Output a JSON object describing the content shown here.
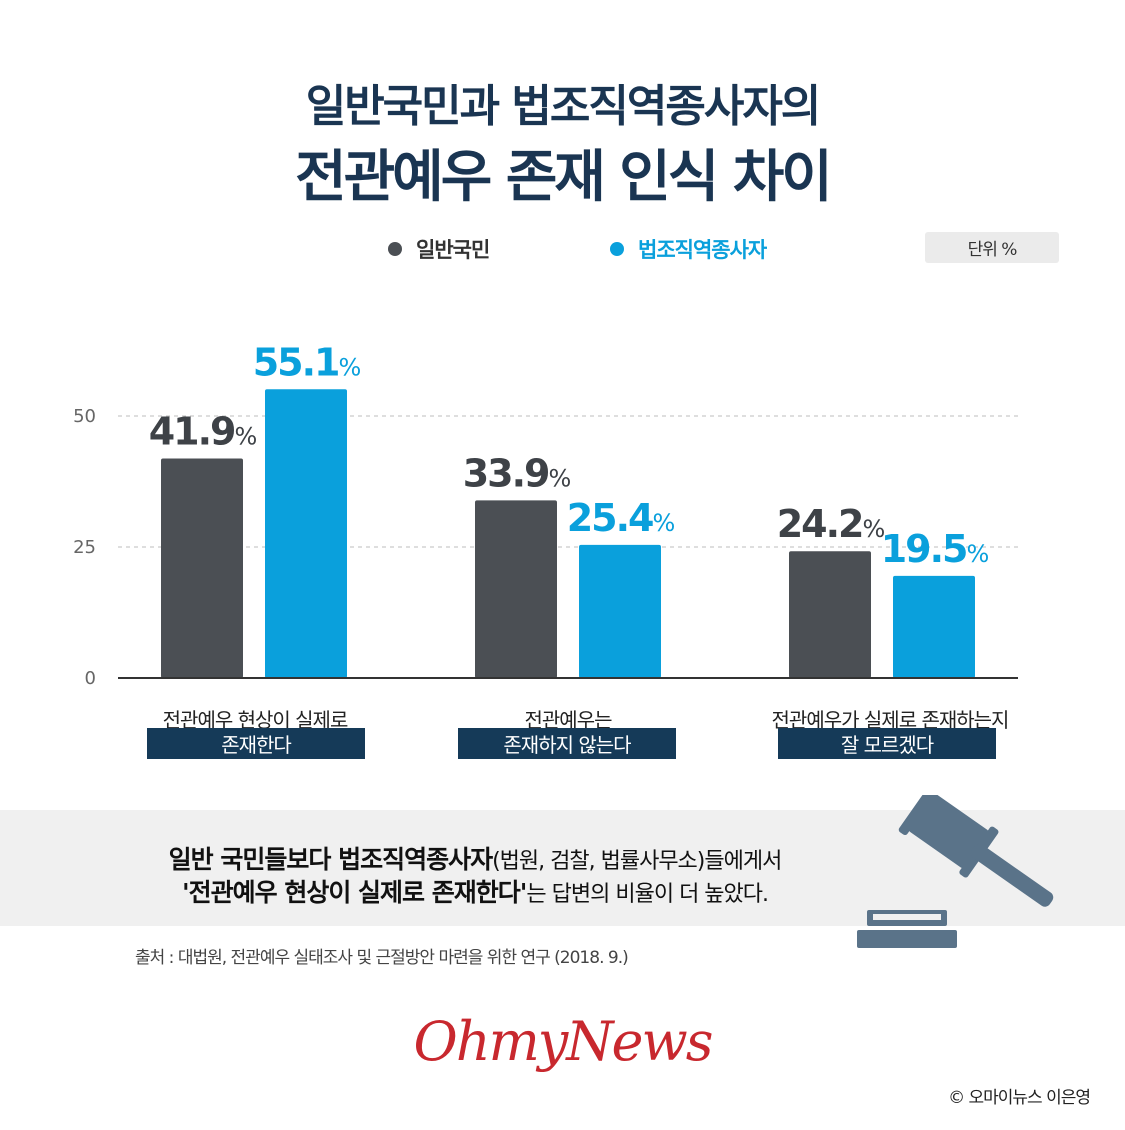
{
  "title": {
    "line1": "일반국민과 법조직역종사자의",
    "line2": "전관예우 존재 인식 차이"
  },
  "legend": [
    {
      "label": "일반국민",
      "color": "#4b4f54"
    },
    {
      "label": "법조직역종사자",
      "color": "#0aa0dc"
    }
  ],
  "unit": "단위 %",
  "chart_data": {
    "type": "bar",
    "categories": [
      "전관예우 현상이 실제로 존재한다",
      "전관예우는 존재하지 않는다",
      "전관예우가 실제로 존재하는지 잘 모르겠다"
    ],
    "category_labels": [
      {
        "line1": "전관예우 현상이 실제로",
        "line2": "존재한다"
      },
      {
        "line1": "전관예우는",
        "line2": "존재하지 않는다"
      },
      {
        "line1": "전관예우가 실제로 존재하는지",
        "line2": "잘 모르겠다"
      }
    ],
    "series": [
      {
        "name": "일반국민",
        "values": [
          41.9,
          33.9,
          24.2
        ],
        "color": "#4b4f54"
      },
      {
        "name": "법조직역종사자",
        "values": [
          55.1,
          25.4,
          19.5
        ],
        "color": "#0aa0dc"
      }
    ],
    "value_suffix": "%",
    "yticks": [
      0,
      25,
      50
    ],
    "ylim": [
      0,
      50
    ],
    "grid": true,
    "legend_position": "top"
  },
  "summary": {
    "line1_bold": "일반 국민들보다 법조직역종사자",
    "line1_rest": "(법원, 검찰, 법률사무소)들에게서",
    "line2_bold": "'전관예우 현상이 실제로 존재한다'",
    "line2_rest": "는 답변의 비율이 더 높았다."
  },
  "source": "출처 : 대법원, 전관예우 실태조사 및 근절방안 마련을 위한 연구 (2018. 9.)",
  "logo": "OhmyNews",
  "copyright": "© 오마이뉴스 이은영",
  "gavel_icon": "gavel-icon"
}
